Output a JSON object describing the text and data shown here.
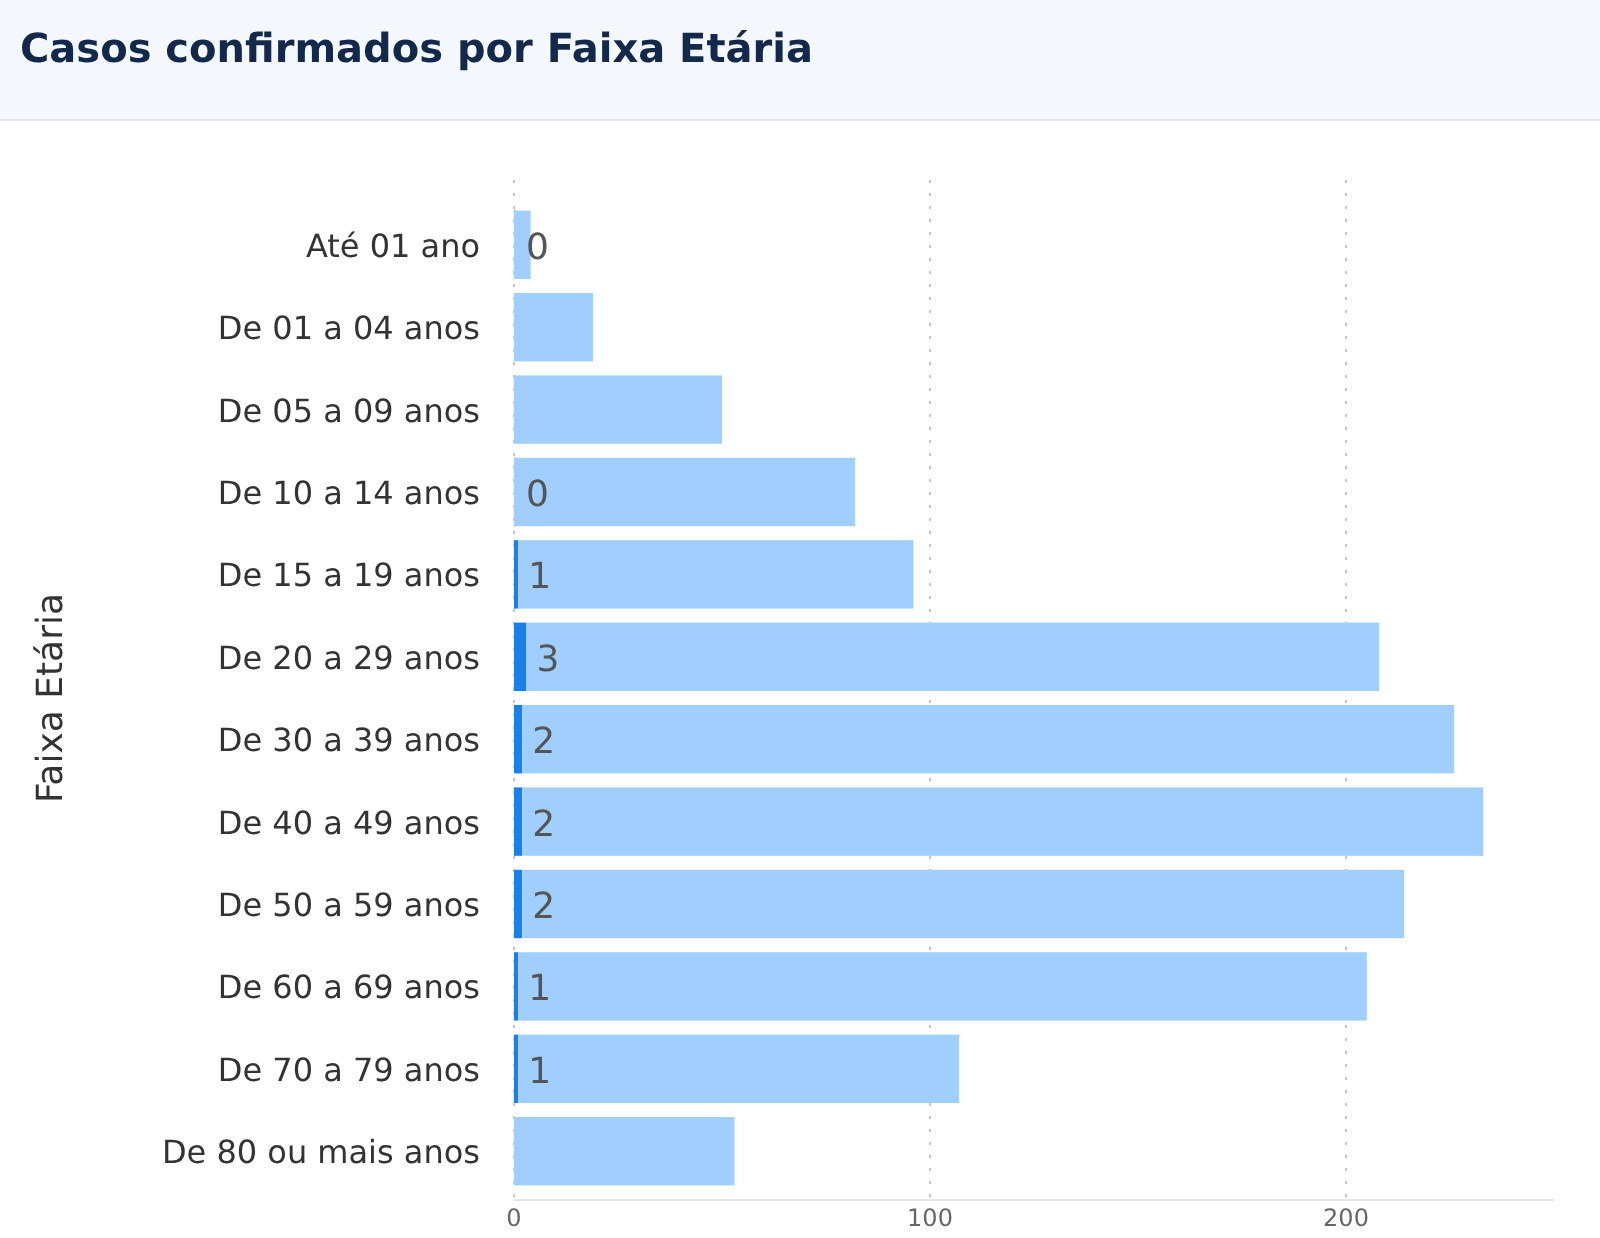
{
  "chart_data": {
    "type": "bar",
    "orientation": "horizontal",
    "stacked": true,
    "title": "Casos confirmados por Faixa Etária",
    "ylabel": "Faixa Etária",
    "categories": [
      "Até 01 ano",
      "De 01 a 04 anos",
      "De 05 a 09 anos",
      "De 10 a 14 anos",
      "De 15 a 19 anos",
      "De 20 a 29 anos",
      "De 30 a 39 anos",
      "De 40 a 49 anos",
      "De 50 a 59 anos",
      "De 60 a 69 anos",
      "De 70 a 79 anos",
      "De 80 ou mais anos"
    ],
    "series": [
      {
        "color": "#1a7fe8",
        "values": [
          0,
          null,
          null,
          0,
          1,
          3,
          2,
          2,
          2,
          1,
          1,
          null
        ],
        "value_labels": [
          "0",
          null,
          null,
          "0",
          "1",
          "3",
          "2",
          "2",
          "2",
          "1",
          "1",
          null
        ]
      },
      {
        "color": "#a0cfff",
        "values": [
          4,
          19,
          50,
          82,
          95,
          205,
          224,
          231,
          212,
          204,
          106,
          53
        ]
      }
    ],
    "xlim": [
      0,
      250
    ],
    "xticks": [
      0,
      100,
      200
    ],
    "grid": "x"
  }
}
